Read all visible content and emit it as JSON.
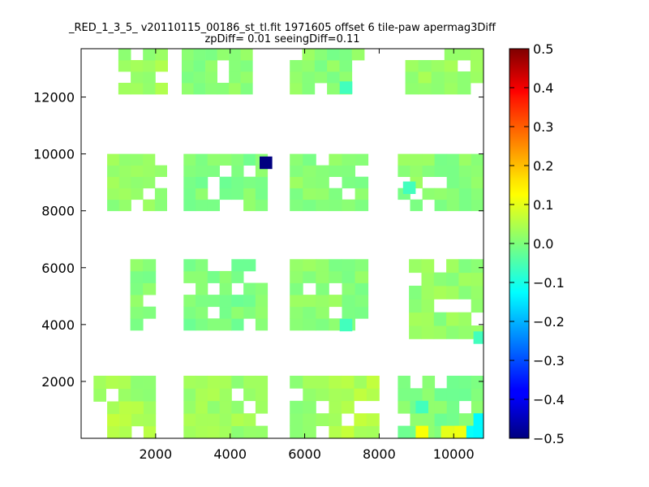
{
  "chart_data": {
    "type": "heatmap",
    "title": "_RED_1_3_5_ v20110115_00186_st_tl.fit 1971605 offset 6 tile-paw apermag3Diff",
    "subtitle": "zpDiff= 0.01 seeingDiff=0.11",
    "xlabel": "",
    "ylabel": "",
    "xlim": [
      0,
      10800
    ],
    "ylim": [
      0,
      13700
    ],
    "x_ticks": [
      2000,
      4000,
      6000,
      8000,
      10000
    ],
    "y_ticks": [
      2000,
      4000,
      6000,
      8000,
      10000,
      12000
    ],
    "cell_size": [
      340,
      440
    ],
    "colorbar": {
      "min": -0.5,
      "max": 0.5,
      "ticks": [
        "0.5",
        "0.4",
        "0.3",
        "0.2",
        "0.1",
        "0.0",
        "−0.1",
        "−0.2",
        "−0.3",
        "−0.4",
        "−0.5"
      ]
    },
    "typical_value": 0.02,
    "outliers": [
      {
        "x": 4960,
        "y": 9690,
        "value": -0.5
      },
      {
        "x": 9150,
        "y": 220,
        "value": 0.12
      },
      {
        "x": 9830,
        "y": 220,
        "value": 0.1
      },
      {
        "x": 10170,
        "y": 220,
        "value": 0.11
      },
      {
        "x": 10510,
        "y": 220,
        "value": -0.12
      },
      {
        "x": 10700,
        "y": 220,
        "value": -0.13
      },
      {
        "x": 10700,
        "y": 660,
        "value": -0.13
      },
      {
        "x": 9150,
        "y": 1100,
        "value": -0.06
      },
      {
        "x": 7110,
        "y": 3980,
        "value": -0.06
      },
      {
        "x": 10700,
        "y": 3540,
        "value": -0.06
      },
      {
        "x": 7110,
        "y": 12330,
        "value": -0.06
      },
      {
        "x": 8810,
        "y": 8810,
        "value": -0.06
      }
    ],
    "regions": [
      {
        "x0": 1000,
        "x1": 2320,
        "y0": 12100,
        "y1": 13700,
        "value": 0.03
      },
      {
        "x0": 2700,
        "x1": 4600,
        "y0": 12100,
        "y1": 13700,
        "value": 0.01
      },
      {
        "x0": 5600,
        "x1": 7600,
        "y0": 12100,
        "y1": 13700,
        "value": 0.01
      },
      {
        "x0": 8700,
        "x1": 10800,
        "y0": 12100,
        "y1": 13700,
        "value": 0.03
      },
      {
        "x0": 700,
        "x1": 2300,
        "y0": 8000,
        "y1": 10000,
        "value": 0.02
      },
      {
        "x0": 2750,
        "x1": 5000,
        "y0": 8000,
        "y1": 10000,
        "value": 0.0
      },
      {
        "x0": 5600,
        "x1": 7700,
        "y0": 8000,
        "y1": 10000,
        "value": 0.01
      },
      {
        "x0": 8500,
        "x1": 10800,
        "y0": 8000,
        "y1": 10000,
        "value": 0.01
      },
      {
        "x0": 1320,
        "x1": 2000,
        "y0": 3800,
        "y1": 6300,
        "value": 0.01
      },
      {
        "x0": 2750,
        "x1": 5000,
        "y0": 3800,
        "y1": 6300,
        "value": 0.0
      },
      {
        "x0": 5600,
        "x1": 7700,
        "y0": 3800,
        "y1": 6300,
        "value": 0.01
      },
      {
        "x0": 8800,
        "x1": 10800,
        "y0": 3500,
        "y1": 6300,
        "value": 0.02
      },
      {
        "x0": 0,
        "x1": 2000,
        "y0": 1300,
        "y1": 2200,
        "value": 0.03
      },
      {
        "x0": 700,
        "x1": 2000,
        "y0": 0,
        "y1": 1300,
        "value": 0.05
      },
      {
        "x0": 2750,
        "x1": 5000,
        "y0": 0,
        "y1": 2200,
        "value": 0.03
      },
      {
        "x0": 5600,
        "x1": 6650,
        "y0": 0,
        "y1": 2200,
        "value": 0.02
      },
      {
        "x0": 6650,
        "x1": 8000,
        "y0": 0,
        "y1": 2200,
        "value": 0.05
      },
      {
        "x0": 8500,
        "x1": 10800,
        "y0": 0,
        "y1": 2200,
        "value": 0.0
      }
    ]
  }
}
